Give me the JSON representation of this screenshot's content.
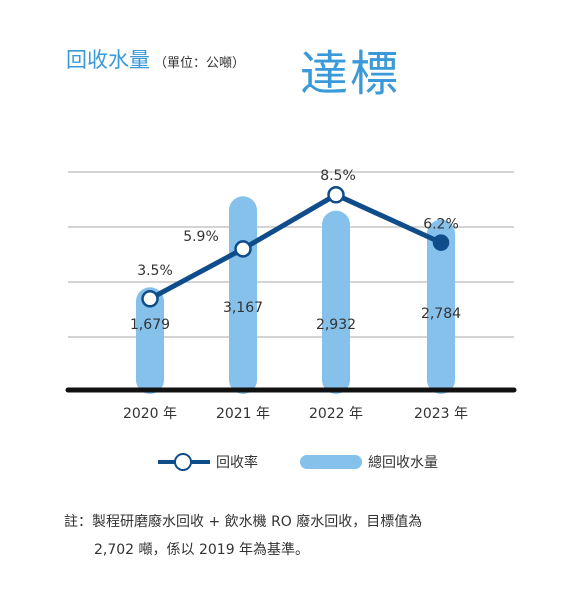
{
  "header": {
    "title": "回收水量",
    "unit": "（單位：公噸）",
    "badge": "達標"
  },
  "chart_data": {
    "type": "bar+line",
    "categories": [
      "2020 年",
      "2021 年",
      "2022 年",
      "2023 年"
    ],
    "bars": {
      "name": "總回收水量",
      "values": [
        1679,
        3167,
        2932,
        2784
      ],
      "labels": [
        "1,679",
        "3,167",
        "2,932",
        "2,784"
      ]
    },
    "line": {
      "name": "回收率",
      "values": [
        3.5,
        5.9,
        8.5,
        6.2
      ],
      "labels": [
        "3.5%",
        "5.9%",
        "8.5%",
        "6.2%"
      ],
      "highlight_last": true
    },
    "grid": true,
    "legend_position": "bottom",
    "colors": {
      "bar": "#85c1ea",
      "line": "#0f4c8a",
      "grid": "#bbbbbb",
      "axis": "#111111"
    }
  },
  "legend": {
    "line_label": "回收率",
    "bar_label": "總回收水量"
  },
  "note": {
    "line1": "註：製程研磨廢水回收 + 飲水機 RO 廢水回收，目標值為",
    "line2": "2,702 噸，係以 2019 年為基準。"
  }
}
